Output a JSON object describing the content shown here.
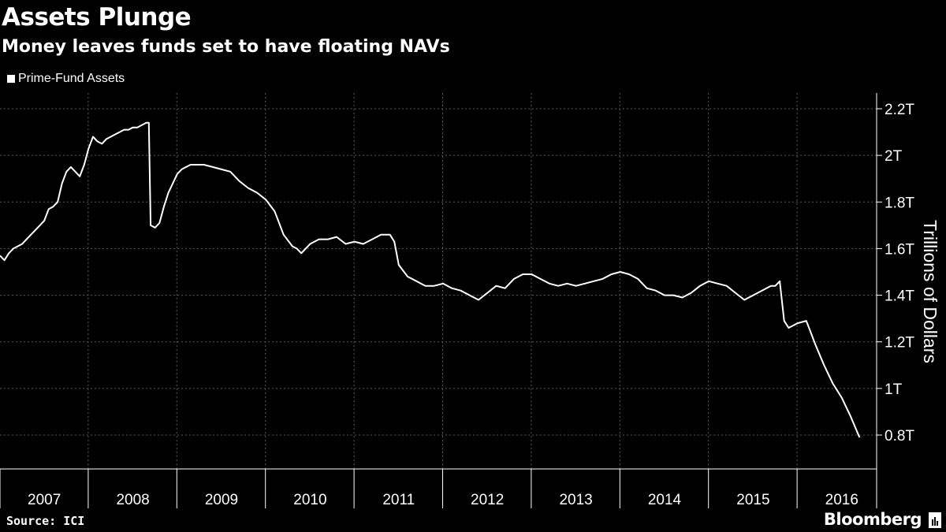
{
  "chart_data": {
    "type": "line",
    "title": "Assets Plunge",
    "subtitle": "Money leaves funds set to have floating NAVs",
    "ylabel": "Trillions of Dollars",
    "xlabel": "",
    "ylim": [
      0.7,
      2.25
    ],
    "xlim": [
      2007.0,
      2016.95
    ],
    "y_ticks": [
      0.8,
      1.0,
      1.2,
      1.4,
      1.6,
      1.8,
      2.0,
      2.2
    ],
    "y_tick_labels": [
      "0.8T",
      "1T",
      "1.2T",
      "1.4T",
      "1.6T",
      "1.8T",
      "2T",
      "2.2T"
    ],
    "x_tick_labels": [
      "2007",
      "2008",
      "2009",
      "2010",
      "2011",
      "2012",
      "2013",
      "2014",
      "2015",
      "2016"
    ],
    "grid": true,
    "legend_position": "top-left",
    "series": [
      {
        "name": "Prime-Fund Assets",
        "color": "#ffffff",
        "x": [
          2007.0,
          2007.05,
          2007.1,
          2007.15,
          2007.2,
          2007.25,
          2007.3,
          2007.35,
          2007.4,
          2007.45,
          2007.5,
          2007.55,
          2007.6,
          2007.65,
          2007.7,
          2007.75,
          2007.8,
          2007.85,
          2007.9,
          2007.95,
          2008.0,
          2008.05,
          2008.1,
          2008.15,
          2008.2,
          2008.25,
          2008.3,
          2008.35,
          2008.4,
          2008.45,
          2008.5,
          2008.55,
          2008.6,
          2008.65,
          2008.68,
          2008.7,
          2008.75,
          2008.8,
          2008.85,
          2008.9,
          2009.0,
          2009.05,
          2009.1,
          2009.15,
          2009.2,
          2009.3,
          2009.4,
          2009.5,
          2009.6,
          2009.7,
          2009.8,
          2009.9,
          2010.0,
          2010.1,
          2010.2,
          2010.3,
          2010.35,
          2010.4,
          2010.5,
          2010.6,
          2010.7,
          2010.8,
          2010.9,
          2011.0,
          2011.1,
          2011.2,
          2011.3,
          2011.4,
          2011.45,
          2011.5,
          2011.6,
          2011.7,
          2011.8,
          2011.9,
          2012.0,
          2012.1,
          2012.2,
          2012.3,
          2012.4,
          2012.5,
          2012.6,
          2012.7,
          2012.8,
          2012.9,
          2013.0,
          2013.1,
          2013.2,
          2013.3,
          2013.4,
          2013.5,
          2013.6,
          2013.7,
          2013.8,
          2013.9,
          2014.0,
          2014.1,
          2014.2,
          2014.3,
          2014.4,
          2014.5,
          2014.6,
          2014.7,
          2014.8,
          2014.9,
          2015.0,
          2015.1,
          2015.2,
          2015.3,
          2015.4,
          2015.5,
          2015.6,
          2015.7,
          2015.75,
          2015.8,
          2015.85,
          2015.9,
          2016.0,
          2016.1,
          2016.15,
          2016.2,
          2016.3,
          2016.4,
          2016.5,
          2016.6,
          2016.7
        ],
        "y": [
          1.57,
          1.55,
          1.58,
          1.6,
          1.61,
          1.62,
          1.64,
          1.66,
          1.68,
          1.7,
          1.72,
          1.77,
          1.78,
          1.8,
          1.88,
          1.93,
          1.95,
          1.93,
          1.91,
          1.96,
          2.03,
          2.08,
          2.06,
          2.05,
          2.07,
          2.08,
          2.09,
          2.1,
          2.11,
          2.11,
          2.12,
          2.12,
          2.13,
          2.14,
          2.14,
          1.7,
          1.69,
          1.71,
          1.78,
          1.84,
          1.92,
          1.94,
          1.95,
          1.96,
          1.96,
          1.96,
          1.95,
          1.94,
          1.93,
          1.89,
          1.86,
          1.84,
          1.81,
          1.76,
          1.66,
          1.61,
          1.6,
          1.58,
          1.62,
          1.64,
          1.64,
          1.65,
          1.62,
          1.63,
          1.62,
          1.64,
          1.66,
          1.66,
          1.63,
          1.53,
          1.48,
          1.46,
          1.44,
          1.44,
          1.45,
          1.43,
          1.42,
          1.4,
          1.38,
          1.41,
          1.44,
          1.43,
          1.47,
          1.49,
          1.49,
          1.47,
          1.45,
          1.44,
          1.45,
          1.44,
          1.45,
          1.46,
          1.47,
          1.49,
          1.5,
          1.49,
          1.47,
          1.43,
          1.42,
          1.4,
          1.4,
          1.39,
          1.41,
          1.44,
          1.46,
          1.45,
          1.44,
          1.41,
          1.38,
          1.4,
          1.42,
          1.44,
          1.44,
          1.46,
          1.29,
          1.26,
          1.28,
          1.29,
          1.24,
          1.19,
          1.1,
          1.02,
          0.96,
          0.88,
          0.79
        ]
      }
    ]
  },
  "source": "Source: ICI",
  "brand": "Bloomberg"
}
